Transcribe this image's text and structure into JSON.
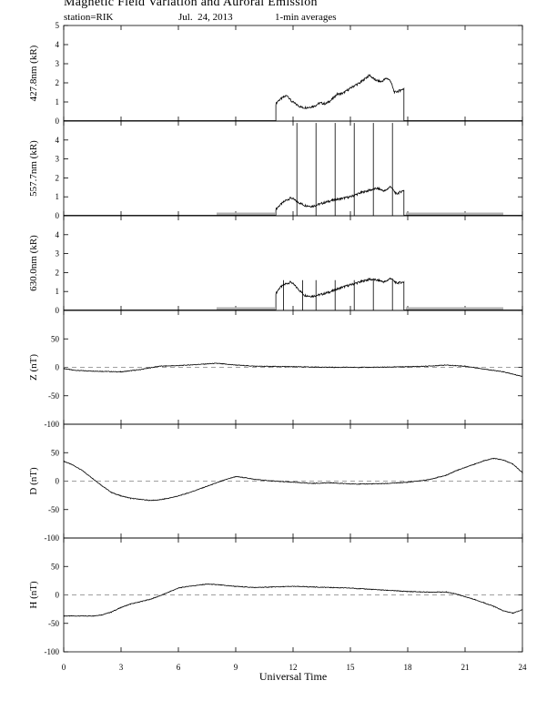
{
  "header": {
    "title": "Magnetic Field Variation and Auroral Emission",
    "station": "station=RIK",
    "date": "Jul.  24, 2013",
    "averaging": "1-min averages"
  },
  "colors": {
    "trace": "#000000",
    "zero_line": "#808080",
    "no_data_bar": "#b0b0b0"
  },
  "chart_data": [
    {
      "type": "line",
      "ylabel": "427.8nm (kR)",
      "ylim": [
        0,
        5
      ],
      "yticks": [
        "0",
        "1",
        "2",
        "3",
        "4",
        "5"
      ],
      "x": [
        11.1,
        11.2,
        11.5,
        11.7,
        11.9,
        12.2,
        12.5,
        12.8,
        13.1,
        13.4,
        13.7,
        14.0,
        14.3,
        14.6,
        14.9,
        15.2,
        15.5,
        15.8,
        16.0,
        16.3,
        16.6,
        16.9,
        17.1,
        17.3,
        17.6,
        17.8
      ],
      "y": [
        0.9,
        1.05,
        1.25,
        1.35,
        1.05,
        0.85,
        0.7,
        0.72,
        0.78,
        0.95,
        0.9,
        1.1,
        1.4,
        1.45,
        1.65,
        1.85,
        2.0,
        2.25,
        2.4,
        2.15,
        2.05,
        2.25,
        2.1,
        1.5,
        1.6,
        1.7
      ],
      "spikes": [],
      "no_data_ranges": [],
      "zero_line": false
    },
    {
      "type": "line",
      "ylabel": "557.7nm (kR)",
      "ylim": [
        0,
        5
      ],
      "yticks": [
        "0",
        "1",
        "2",
        "3",
        "4"
      ],
      "x": [
        11.1,
        11.3,
        11.6,
        11.9,
        12.2,
        12.6,
        13.0,
        13.5,
        14.0,
        14.5,
        15.0,
        15.5,
        16.0,
        16.4,
        16.8,
        17.1,
        17.4,
        17.8
      ],
      "y": [
        0.35,
        0.55,
        0.8,
        0.95,
        0.75,
        0.55,
        0.5,
        0.65,
        0.8,
        0.9,
        1.0,
        1.2,
        1.35,
        1.45,
        1.3,
        1.55,
        1.15,
        1.35
      ],
      "spikes": [
        12.2,
        13.2,
        14.2,
        15.2,
        16.2,
        17.2
      ],
      "spike_top": 4.9,
      "no_data_ranges": [
        [
          8.0,
          11.05
        ],
        [
          17.9,
          23.0
        ]
      ],
      "zero_line": false
    },
    {
      "type": "line",
      "ylabel": "630.0nm (kR)",
      "ylim": [
        0,
        5
      ],
      "yticks": [
        "0",
        "1",
        "2",
        "3",
        "4"
      ],
      "x": [
        11.1,
        11.3,
        11.6,
        11.9,
        12.2,
        12.6,
        13.0,
        13.5,
        14.0,
        14.5,
        15.0,
        15.5,
        16.0,
        16.4,
        16.8,
        17.1,
        17.4,
        17.8
      ],
      "y": [
        0.9,
        1.2,
        1.4,
        1.5,
        1.2,
        0.8,
        0.75,
        0.85,
        1.0,
        1.2,
        1.35,
        1.5,
        1.65,
        1.6,
        1.5,
        1.7,
        1.45,
        1.5
      ],
      "spikes": [
        11.5,
        12.5,
        13.2,
        14.2,
        15.2,
        16.2,
        17.2
      ],
      "spike_top": 1.6,
      "no_data_ranges": [
        [
          8.0,
          11.05
        ],
        [
          17.9,
          23.0
        ]
      ],
      "zero_line": false
    },
    {
      "type": "line",
      "ylabel": "Z (nT)",
      "ylim": [
        -100,
        100
      ],
      "yticks": [
        "-100",
        "-50",
        "0",
        "50"
      ],
      "x": [
        0,
        0.5,
        1,
        2,
        3,
        4,
        5,
        6,
        7,
        8,
        9,
        10,
        12,
        14,
        16,
        18,
        19,
        20,
        21,
        22,
        23,
        23.5,
        24
      ],
      "y": [
        -2,
        -5,
        -6,
        -7,
        -8,
        -4,
        2,
        3,
        5,
        7,
        4,
        2,
        1,
        0,
        0,
        1,
        2,
        4,
        2,
        -3,
        -8,
        -12,
        -16
      ],
      "spikes": [],
      "no_data_ranges": [],
      "zero_line": true
    },
    {
      "type": "line",
      "ylabel": "D (nT)",
      "ylim": [
        -100,
        100
      ],
      "yticks": [
        "-100",
        "-50",
        "0",
        "50"
      ],
      "x": [
        0,
        0.5,
        1,
        1.5,
        2,
        2.5,
        3,
        3.5,
        4,
        4.5,
        5,
        5.5,
        6,
        6.5,
        7,
        7.5,
        8,
        8.5,
        9,
        9.5,
        10,
        11,
        12,
        13,
        14,
        15,
        16,
        17,
        18,
        19,
        20,
        20.5,
        21,
        21.5,
        22,
        22.5,
        23,
        23.5,
        24
      ],
      "y": [
        35,
        28,
        18,
        5,
        -8,
        -20,
        -26,
        -30,
        -32,
        -34,
        -33,
        -30,
        -26,
        -21,
        -15,
        -9,
        -3,
        3,
        8,
        6,
        3,
        0,
        -2,
        -4,
        -3,
        -5,
        -5,
        -4,
        -2,
        2,
        10,
        18,
        24,
        30,
        36,
        40,
        37,
        30,
        15
      ],
      "spikes": [],
      "no_data_ranges": [],
      "zero_line": true
    },
    {
      "type": "line",
      "ylabel": "H (nT)",
      "ylim": [
        -100,
        100
      ],
      "yticks": [
        "-100",
        "-50",
        "0",
        "50"
      ],
      "x": [
        0,
        1,
        1.5,
        2,
        2.5,
        3,
        3.5,
        4,
        4.5,
        5,
        5.5,
        6,
        6.5,
        7,
        7.5,
        8,
        9,
        10,
        11,
        12,
        13,
        14,
        15,
        16,
        17,
        18,
        19,
        20,
        20.5,
        21,
        21.5,
        22,
        22.5,
        23,
        23.5,
        24
      ],
      "y": [
        -37,
        -37,
        -37,
        -35,
        -30,
        -22,
        -16,
        -12,
        -8,
        -2,
        5,
        12,
        15,
        17,
        19,
        18,
        15,
        13,
        14,
        15,
        14,
        13,
        12,
        10,
        8,
        6,
        5,
        5,
        2,
        -3,
        -8,
        -14,
        -20,
        -28,
        -32,
        -26
      ],
      "spikes": [],
      "no_data_ranges": [],
      "zero_line": true
    }
  ],
  "x_axis": {
    "label": "Universal Time",
    "xlim": [
      0,
      24
    ],
    "ticks": [
      0,
      3,
      6,
      9,
      12,
      15,
      18,
      21,
      24
    ],
    "tick_labels": [
      "0",
      "3",
      "6",
      "9",
      "12",
      "15",
      "18",
      "21",
      "24"
    ]
  }
}
